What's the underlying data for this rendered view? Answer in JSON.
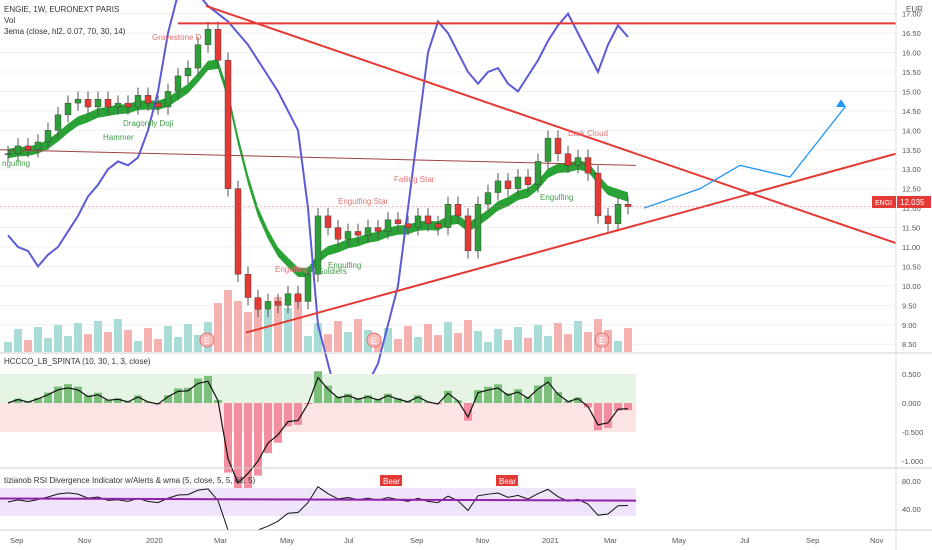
{
  "header": {
    "symbol_line": "ENGIE, 1W, EURONEXT PARIS",
    "vol_label": "Vol",
    "ema_label": "3ema (close, hl2, 0.07, 70, 30, 14)"
  },
  "price_axis": {
    "currency": "EUR",
    "ticks": [
      "17.00",
      "16.50",
      "16.00",
      "15.50",
      "15.00",
      "14.50",
      "14.00",
      "13.50",
      "13.00",
      "12.50",
      "12.00",
      "11.50",
      "11.00",
      "10.50",
      "10.00",
      "9.50",
      "9.00",
      "8.50"
    ],
    "last_price_badge": "12.035",
    "symbol_badge": "ENGI"
  },
  "time_axis": {
    "labels": [
      "Sep",
      "Nov",
      "2020",
      "Mar",
      "May",
      "Jul",
      "Sep",
      "Nov",
      "2021",
      "Mar",
      "May",
      "Jul",
      "Sep",
      "Nov"
    ]
  },
  "annotations": [
    "Gravestone D",
    "Dragonfly Doji",
    "Hammer",
    "ngulfing",
    "Falling Star",
    "Engulfing Star",
    "Dark Cloud",
    "Engulfing",
    "Engulfing",
    "Engulfing",
    "Soldiers"
  ],
  "earnings_marker": "E",
  "osc1": {
    "label": "HCCCO_LB_SPINTA (10, 30, 1, 3, close)",
    "ticks": [
      "0.500",
      "0.000",
      "-0.500",
      "-1.000"
    ]
  },
  "osc2": {
    "label": "tizianob RSI Divergence Indicator w/Alerts & wma (5, close, 5, 5, 60, 5)",
    "ticks": [
      "80.00",
      "40.00"
    ],
    "bear_label": "Bear"
  },
  "colors": {
    "bull": "#26a69a",
    "bear": "#ef5350",
    "trend": "#e53935",
    "projection": "#2196f3",
    "blue_line": "#5b5bd6",
    "ema_band": "#1e9e2a"
  },
  "chart_data": {
    "type": "candlestick",
    "title": "ENGIE, 1W, EURONEXT PARIS",
    "ylabel": "EUR",
    "ylim": [
      8.3,
      17.3
    ],
    "closes_approx": [
      13.4,
      13.6,
      13.5,
      13.7,
      14.0,
      14.4,
      14.7,
      14.8,
      14.6,
      14.8,
      14.6,
      14.7,
      14.6,
      14.9,
      14.7,
      14.6,
      15.0,
      15.4,
      15.6,
      16.2,
      16.6,
      15.8,
      12.5,
      10.3,
      9.7,
      9.4,
      9.6,
      9.5,
      9.8,
      9.6,
      10.3,
      11.8,
      11.5,
      11.2,
      11.4,
      11.3,
      11.5,
      11.4,
      11.7,
      11.6,
      11.5,
      11.8,
      11.6,
      11.5,
      12.1,
      11.8,
      10.9,
      12.1,
      12.4,
      12.7,
      12.5,
      12.8,
      12.6,
      13.2,
      13.8,
      13.4,
      13.1,
      13.3,
      12.9,
      11.8,
      11.6,
      12.1,
      12.035
    ],
    "last_close": 12.035,
    "resistance_level": 16.75,
    "series": [
      {
        "name": "3ema",
        "values": []
      }
    ]
  }
}
